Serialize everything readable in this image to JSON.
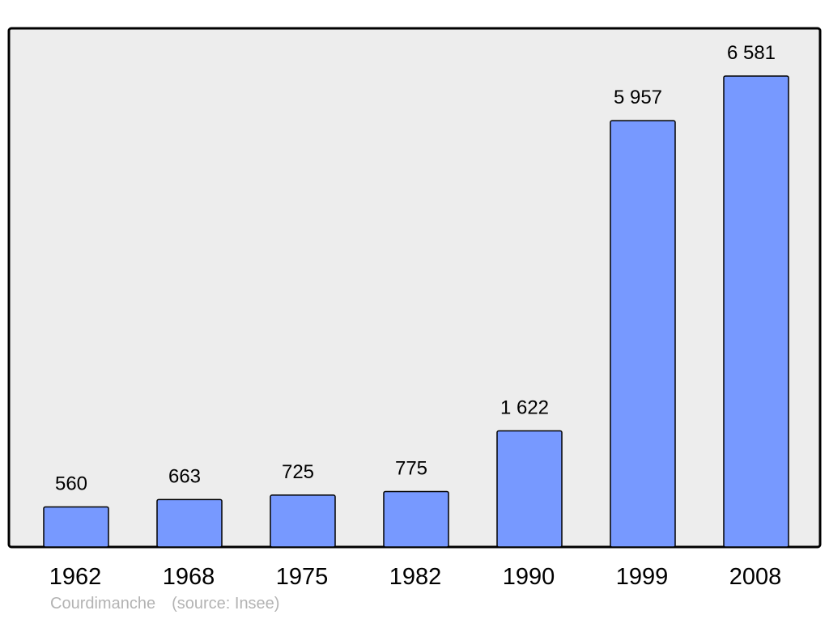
{
  "chart_data": {
    "type": "bar",
    "categories": [
      "1962",
      "1968",
      "1975",
      "1982",
      "1990",
      "1999",
      "2008"
    ],
    "values": [
      560,
      663,
      725,
      775,
      1622,
      5957,
      6581
    ],
    "value_labels": [
      "560",
      "663",
      "725",
      "775",
      "1 622",
      "5 957",
      "6 581"
    ],
    "ylim": [
      0,
      7000
    ],
    "grid": false,
    "legend": "none",
    "colors": {
      "bar_fill": "#7799ff",
      "bar_stroke": "#000000",
      "plot_background": "#ededed",
      "plot_border": "#000000"
    }
  },
  "footer": {
    "place": "Courdimanche",
    "source": "(source: Insee)"
  }
}
